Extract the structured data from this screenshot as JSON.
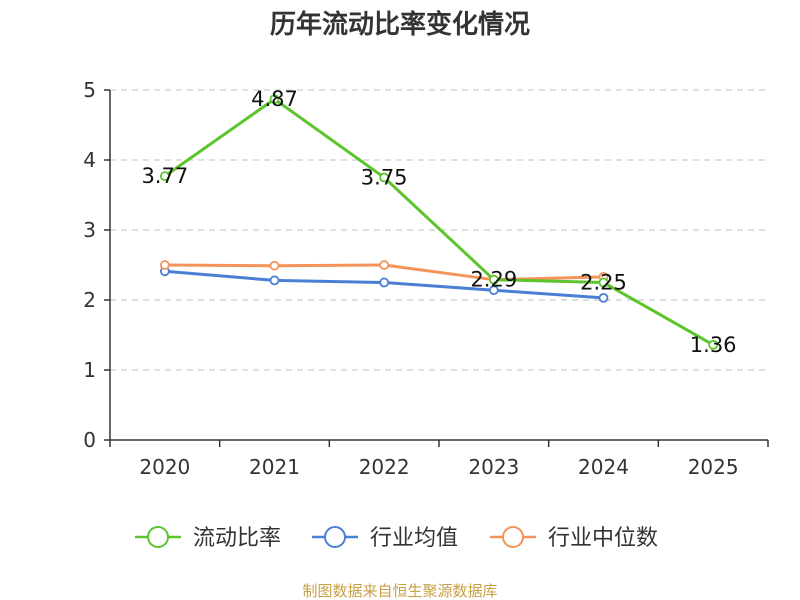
{
  "chart_data": {
    "type": "line",
    "title": "历年流动比率变化情况",
    "categories": [
      "2020",
      "2021",
      "2022",
      "2023",
      "2024",
      "2025"
    ],
    "ylim": [
      0,
      5
    ],
    "yticks": [
      0,
      1,
      2,
      3,
      4,
      5
    ],
    "grid": true,
    "legend_position": "bottom",
    "series": [
      {
        "name": "流动比率",
        "color": "#5cc42c",
        "values": [
          3.77,
          4.87,
          3.75,
          2.29,
          2.25,
          1.36
        ],
        "labels": [
          "3.77",
          "4.87",
          "3.75",
          "2.29",
          "2.25",
          "1.36"
        ]
      },
      {
        "name": "行业均值",
        "color": "#4a7fd6",
        "values": [
          2.41,
          2.28,
          2.25,
          2.14,
          2.03,
          null
        ]
      },
      {
        "name": "行业中位数",
        "color": "#f5945a",
        "values": [
          2.5,
          2.49,
          2.5,
          2.29,
          2.33,
          null
        ]
      }
    ],
    "source": "制图数据来自恒生聚源数据库"
  }
}
